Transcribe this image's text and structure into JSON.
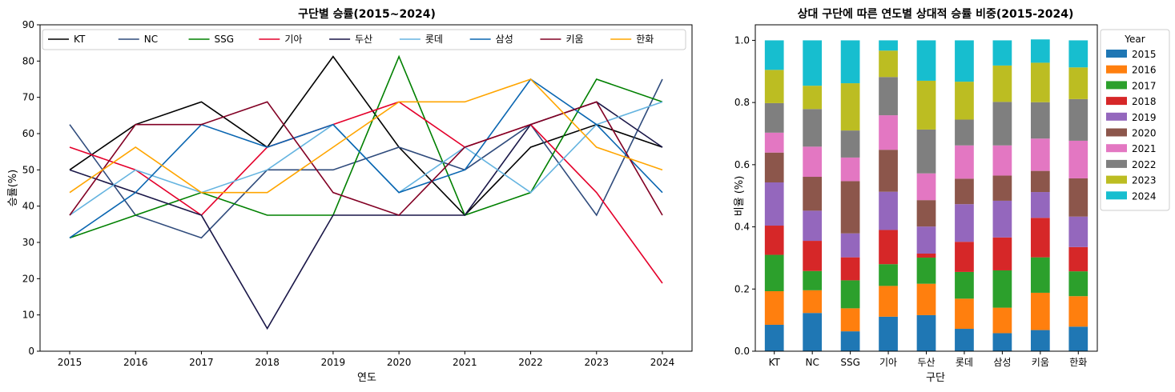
{
  "chart_data": [
    {
      "type": "line",
      "title": "구단별 승률(2015~2024)",
      "xlabel": "연도",
      "ylabel": "승률(%)",
      "x": [
        2015,
        2016,
        2017,
        2018,
        2019,
        2020,
        2021,
        2022,
        2023,
        2024
      ],
      "xlim": [
        2014.55,
        2024.45
      ],
      "ylim": [
        0,
        90
      ],
      "yticks": [
        0,
        10,
        20,
        30,
        40,
        50,
        60,
        70,
        80,
        90
      ],
      "legend_position": "top",
      "series": [
        {
          "name": "KT",
          "color": "#000000",
          "values": [
            50,
            62.5,
            68.75,
            56.25,
            81.25,
            56.25,
            37.5,
            56.25,
            62.5,
            56.25
          ]
        },
        {
          "name": "NC",
          "color": "#2f4b7c",
          "values": [
            62.5,
            37.5,
            31.25,
            50,
            50,
            56.25,
            50,
            62.5,
            37.5,
            75
          ]
        },
        {
          "name": "SSG",
          "color": "#008000",
          "values": [
            31.25,
            37.5,
            43.75,
            37.5,
            37.5,
            81.25,
            37.5,
            43.75,
            75,
            68.75
          ]
        },
        {
          "name": "기아",
          "color": "#e4002b",
          "values": [
            56.25,
            50,
            37.5,
            56.25,
            62.5,
            68.75,
            56.25,
            62.5,
            43.75,
            18.75
          ]
        },
        {
          "name": "두산",
          "color": "#1a1748",
          "values": [
            50,
            43.75,
            37.5,
            6.25,
            37.5,
            37.5,
            37.5,
            62.5,
            68.75,
            56.25
          ]
        },
        {
          "name": "롯데",
          "color": "#65b4e0",
          "values": [
            37.5,
            50,
            43.75,
            50,
            62.5,
            43.75,
            56.25,
            43.75,
            62.5,
            68.75
          ]
        },
        {
          "name": "삼성",
          "color": "#0a66b1",
          "values": [
            31.25,
            43.75,
            62.5,
            56.25,
            62.5,
            43.75,
            50,
            75,
            62.5,
            43.75
          ]
        },
        {
          "name": "키움",
          "color": "#820024",
          "values": [
            37.5,
            62.5,
            62.5,
            68.75,
            43.75,
            37.5,
            56.25,
            62.5,
            68.75,
            37.5
          ]
        },
        {
          "name": "한화",
          "color": "#ffa500",
          "values": [
            43.75,
            56.25,
            43.75,
            43.75,
            56.25,
            68.75,
            68.75,
            75,
            56.25,
            50
          ]
        }
      ]
    },
    {
      "type": "bar",
      "stacked": true,
      "title": "상대 구단에 따른 연도별 상대적 승률 비중(2015-2024)",
      "xlabel": "구단",
      "ylabel": "비율 (%)",
      "ylim": [
        0,
        1.05
      ],
      "yticks": [
        0.0,
        0.2,
        0.4,
        0.6,
        0.8,
        1.0
      ],
      "yticklabels": [
        "0.0",
        "0.2",
        "0.4",
        "0.6",
        "0.8",
        "1.0"
      ],
      "legend_title": "Year",
      "legend_position": "outside right",
      "categories": [
        "KT",
        "NC",
        "SSG",
        "기아",
        "두산",
        "롯데",
        "삼성",
        "키움",
        "한화"
      ],
      "series": [
        {
          "name": "2015",
          "color": "#1f77b4",
          "values": [
            0.085,
            0.123,
            0.064,
            0.111,
            0.116,
            0.072,
            0.058,
            0.068,
            0.079
          ]
        },
        {
          "name": "2016",
          "color": "#ff7f0e",
          "values": [
            0.108,
            0.073,
            0.074,
            0.099,
            0.101,
            0.097,
            0.082,
            0.12,
            0.098
          ]
        },
        {
          "name": "2017",
          "color": "#2ca02c",
          "values": [
            0.117,
            0.062,
            0.09,
            0.07,
            0.084,
            0.086,
            0.12,
            0.114,
            0.08
          ]
        },
        {
          "name": "2018",
          "color": "#d62728",
          "values": [
            0.094,
            0.097,
            0.074,
            0.11,
            0.013,
            0.097,
            0.106,
            0.127,
            0.078
          ]
        },
        {
          "name": "2019",
          "color": "#9467bd",
          "values": [
            0.139,
            0.097,
            0.077,
            0.123,
            0.087,
            0.121,
            0.118,
            0.083,
            0.098
          ]
        },
        {
          "name": "2020",
          "color": "#8c564b",
          "values": [
            0.096,
            0.109,
            0.168,
            0.135,
            0.085,
            0.082,
            0.081,
            0.068,
            0.123
          ]
        },
        {
          "name": "2021",
          "color": "#e377c2",
          "values": [
            0.064,
            0.097,
            0.076,
            0.111,
            0.086,
            0.107,
            0.097,
            0.104,
            0.121
          ]
        },
        {
          "name": "2022",
          "color": "#7f7f7f",
          "values": [
            0.095,
            0.121,
            0.087,
            0.123,
            0.141,
            0.083,
            0.14,
            0.117,
            0.134
          ]
        },
        {
          "name": "2023",
          "color": "#bcbd22",
          "values": [
            0.107,
            0.075,
            0.152,
            0.085,
            0.157,
            0.122,
            0.117,
            0.127,
            0.102
          ]
        },
        {
          "name": "2024",
          "color": "#17becf",
          "values": [
            0.095,
            0.146,
            0.138,
            0.033,
            0.13,
            0.133,
            0.081,
            0.075,
            0.087
          ]
        }
      ]
    }
  ]
}
